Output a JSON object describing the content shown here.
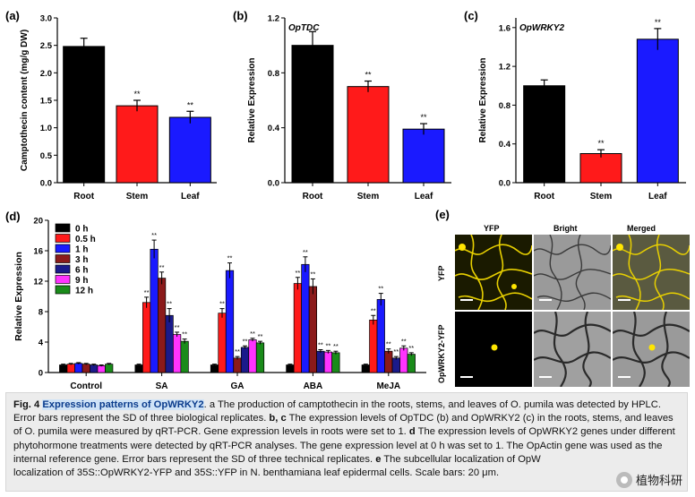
{
  "colors": {
    "black": "#000000",
    "red": "#ff1a1a",
    "blue": "#1a1aff",
    "dark_red": "#8b1a1a",
    "navy": "#1a1a8b",
    "magenta": "#ff33ff",
    "green": "#1a8b1a"
  },
  "chart_data": [
    {
      "panel": "(a)",
      "type": "bar",
      "title": "",
      "ylabel": "Camptothecin content (mg/g DW)",
      "categories": [
        "Root",
        "Stem",
        "Leaf"
      ],
      "values": [
        2.48,
        1.4,
        1.19
      ],
      "errors": [
        0.15,
        0.1,
        0.11
      ],
      "annotations": [
        "",
        "**",
        "**"
      ],
      "colors": [
        "#000000",
        "#ff1a1a",
        "#1a1aff"
      ],
      "ylim": [
        0,
        3.0
      ],
      "ticks": [
        "0.0",
        "0.5",
        "1.0",
        "1.5",
        "2.0",
        "2.5",
        "3.0"
      ],
      "tick_values": [
        0,
        0.5,
        1.0,
        1.5,
        2.0,
        2.5,
        3.0
      ]
    },
    {
      "panel": "(b)",
      "type": "bar",
      "title": "OpTDC",
      "ylabel": "Relative Expression",
      "categories": [
        "Root",
        "Stem",
        "Leaf"
      ],
      "values": [
        1.0,
        0.7,
        0.39
      ],
      "errors": [
        0.1,
        0.04,
        0.04
      ],
      "annotations": [
        "",
        "**",
        "**"
      ],
      "colors": [
        "#000000",
        "#ff1a1a",
        "#1a1aff"
      ],
      "ylim": [
        0,
        1.2
      ],
      "ticks": [
        "0.0",
        "0.4",
        "0.8",
        "1.2"
      ],
      "tick_values": [
        0,
        0.4,
        0.8,
        1.2
      ]
    },
    {
      "panel": "(c)",
      "type": "bar",
      "title": "OpWRKY2",
      "ylabel": "Relative Expression",
      "categories": [
        "Root",
        "Stem",
        "Leaf"
      ],
      "values": [
        1.0,
        0.3,
        1.48
      ],
      "errors": [
        0.06,
        0.04,
        0.11
      ],
      "annotations": [
        "",
        "**",
        "**"
      ],
      "colors": [
        "#000000",
        "#ff1a1a",
        "#1a1aff"
      ],
      "ylim": [
        0,
        1.7
      ],
      "ticks": [
        "0.0",
        "0.4",
        "0.8",
        "1.2",
        "1.6"
      ],
      "tick_values": [
        0,
        0.4,
        0.8,
        1.2,
        1.6
      ]
    },
    {
      "panel": "(d)",
      "type": "bar",
      "title": "",
      "ylabel": "Relative Expression",
      "categories": [
        "Control",
        "SA",
        "GA",
        "ABA",
        "MeJA"
      ],
      "legend": [
        "0 h",
        "0.5 h",
        "1 h",
        "3 h",
        "6 h",
        "9 h",
        "12 h"
      ],
      "series_colors": [
        "#000000",
        "#ff1a1a",
        "#1a1aff",
        "#8b1a1a",
        "#1a1a8b",
        "#ff33ff",
        "#1a8b1a"
      ],
      "series": [
        {
          "name": "0 h",
          "values": [
            1.0,
            1.0,
            1.0,
            1.0,
            1.0
          ],
          "errors": [
            0.1,
            0.1,
            0.1,
            0.1,
            0.1
          ],
          "annotations": [
            "",
            "",
            "",
            "",
            ""
          ]
        },
        {
          "name": "0.5 h",
          "values": [
            1.1,
            9.2,
            7.8,
            11.7,
            6.9
          ],
          "errors": [
            0.1,
            0.7,
            0.6,
            0.8,
            0.6
          ],
          "annotations": [
            "",
            "**",
            "**",
            "**",
            "**"
          ]
        },
        {
          "name": "1 h",
          "values": [
            1.2,
            16.2,
            13.4,
            14.2,
            9.6
          ],
          "errors": [
            0.1,
            1.2,
            1.0,
            1.0,
            0.8
          ],
          "annotations": [
            "",
            "**",
            "**",
            "**",
            "**"
          ]
        },
        {
          "name": "3 h",
          "values": [
            1.1,
            12.4,
            1.9,
            11.3,
            2.8
          ],
          "errors": [
            0.1,
            0.8,
            0.2,
            1.0,
            0.3
          ],
          "annotations": [
            "",
            "**",
            "**",
            "**",
            "**"
          ]
        },
        {
          "name": "6 h",
          "values": [
            1.0,
            7.5,
            3.3,
            2.8,
            1.9
          ],
          "errors": [
            0.1,
            0.9,
            0.2,
            0.2,
            0.2
          ],
          "annotations": [
            "",
            "**",
            "**",
            "**",
            "**"
          ]
        },
        {
          "name": "9 h",
          "values": [
            0.9,
            5.0,
            4.3,
            2.7,
            3.2
          ],
          "errors": [
            0.1,
            0.3,
            0.2,
            0.2,
            0.3
          ],
          "annotations": [
            "",
            "**",
            "**",
            "**",
            "**"
          ]
        },
        {
          "name": "12 h",
          "values": [
            1.1,
            4.1,
            3.9,
            2.6,
            2.4
          ],
          "errors": [
            0.1,
            0.3,
            0.2,
            0.2,
            0.2
          ],
          "annotations": [
            "",
            "**",
            "**",
            "**",
            "**"
          ]
        }
      ],
      "ylim": [
        0,
        20
      ],
      "ticks": [
        "0",
        "4",
        "8",
        "12",
        "16",
        "20"
      ],
      "tick_values": [
        0,
        4,
        8,
        12,
        16,
        20
      ]
    }
  ],
  "panel_e": {
    "label": "(e)",
    "col_headers": [
      "YFP",
      "Bright",
      "Merged"
    ],
    "row_labels": [
      "YFP",
      "OpWRKY2-YFP"
    ]
  },
  "caption": {
    "fig_label": "Fig. 4",
    "highlight_title": "Expression patterns of OpWRKY2",
    "text_1": ". a The production of camptothecin in the roots, stems, and leaves of O. pumila was detected by HPLC. Error bars represent the SD of three biological replicates. ",
    "text_2": "b, c",
    "text_3": " The expression levels of OpTDC (b) and OpWRKY2 (c) in the roots, stems, and leaves of O. pumila were measured by qRT-PCR. Gene expression levels in roots were set to 1. ",
    "text_4": "d",
    "text_5": " The expression levels of OpWRKY2 genes under different phytohormone treatments were detected by qRT-PCR analyses. The gene expression level at 0 h was set to 1. The OpActin gene was used as the internal reference gene. Error bars represent the SD of three technical replicates. ",
    "text_6": "e",
    "text_7": " The subcellular localization of OpW",
    "text_8": "localization of 35S::OpWRKY2-YFP and 35S::YFP in N. benthamiana leaf epidermal cells. Scale bars: 20 μm."
  },
  "watermark": "植物科研"
}
